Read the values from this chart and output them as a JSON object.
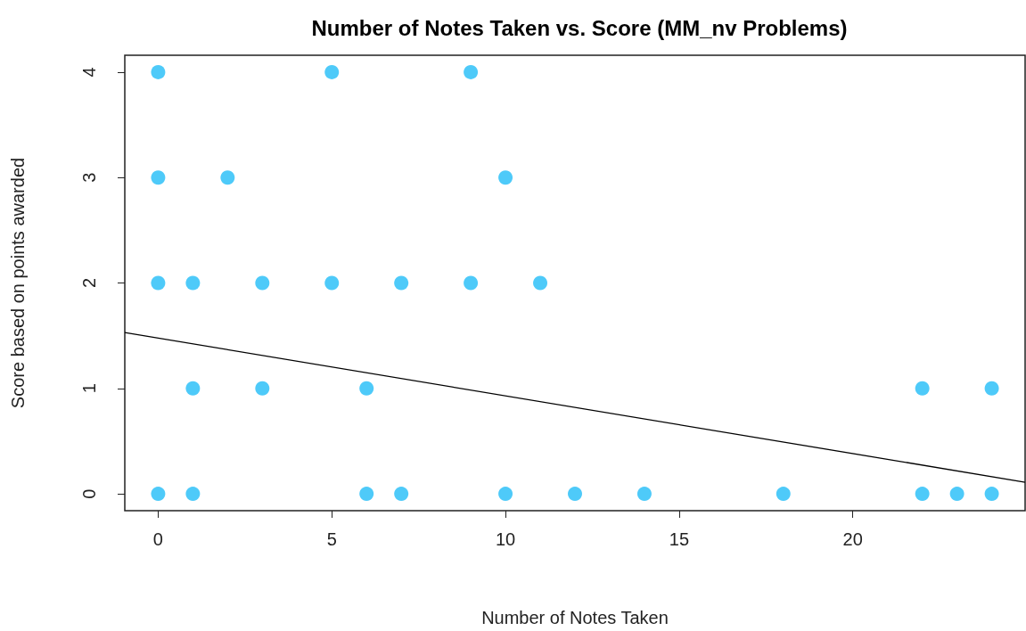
{
  "chart_data": {
    "type": "scatter",
    "title": "Number of Notes Taken vs. Score (MM_nv Problems)",
    "xlabel": "Number of Notes Taken",
    "ylabel": "Score based on points awarded",
    "series": [
      {
        "color": "#22bdf8",
        "marker": "circle",
        "x": [
          0,
          5,
          9,
          0,
          2,
          10,
          0,
          1,
          3,
          5,
          7,
          9,
          11,
          1,
          3,
          6,
          22,
          24,
          0,
          1,
          6,
          7,
          10,
          12,
          14,
          18,
          22,
          23,
          24
        ],
        "values": [
          4,
          4,
          4,
          3,
          3,
          3,
          2,
          2,
          2,
          2,
          2,
          2,
          2,
          1,
          1,
          1,
          1,
          1,
          0,
          0,
          0,
          0,
          0,
          0,
          0,
          0,
          0,
          0,
          0
        ]
      },
      {
        "type": "line",
        "color": "#000000",
        "marker": "none",
        "x": [
          -0.96,
          24.96
        ],
        "values": [
          1.53,
          0.11
        ]
      }
    ],
    "xlim": [
      -0.96,
      24.96
    ],
    "xticks": [
      0,
      5,
      10,
      15,
      20
    ],
    "ylim": [
      -0.16,
      4.16
    ],
    "yticks": [
      0,
      1,
      2,
      3,
      4
    ],
    "grid": false
  }
}
